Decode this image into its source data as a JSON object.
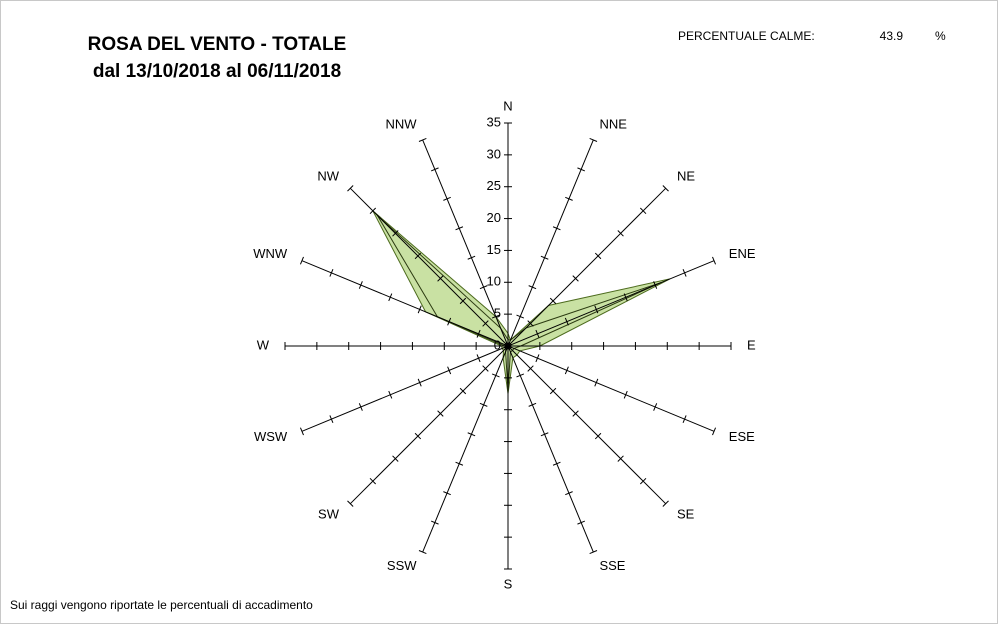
{
  "chart_data": {
    "type": "radar",
    "title": "ROSA DEL VENTO - TOTALE",
    "subtitle": "dal 13/10/2018 al 06/11/2018",
    "calm_label": "PERCENTUALE CALME:",
    "calm_value": 43.9,
    "calm_unit": "%",
    "note": "Sui raggi vengono riportate le percentuali di accadimento",
    "categories": [
      "N",
      "NNE",
      "NE",
      "ENE",
      "E",
      "ESE",
      "SE",
      "SSE",
      "S",
      "SSW",
      "SW",
      "WSW",
      "W",
      "WNW",
      "NW",
      "NNW"
    ],
    "series": [
      {
        "color": "#bfdc93",
        "values": [
          2,
          1,
          9,
          27.5,
          5,
          2,
          2,
          2,
          7.5,
          2,
          1,
          1,
          1,
          14,
          30,
          5
        ]
      },
      {
        "color": "#2b3a10",
        "values": [
          1,
          1,
          4,
          26,
          2,
          1,
          1,
          1,
          7,
          1,
          0.5,
          0.5,
          0.5,
          12,
          29,
          3
        ]
      }
    ],
    "rlim": [
      0,
      35
    ],
    "rticks": [
      0,
      5,
      10,
      15,
      20,
      25,
      30,
      35
    ]
  }
}
